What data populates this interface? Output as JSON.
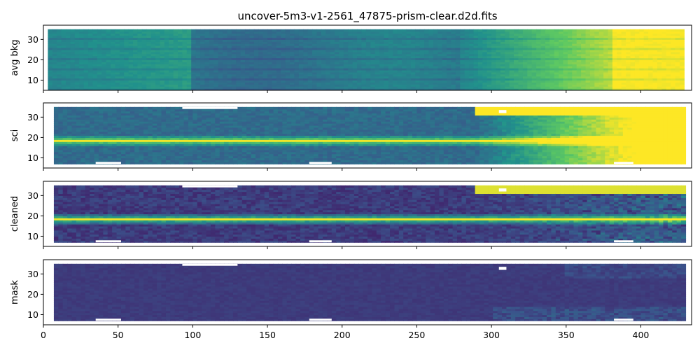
{
  "chart_data": {
    "type": "heatmap",
    "title": "uncover-5m3-v1-2561_47875-prism-clear.d2d.fits",
    "colormap": "viridis",
    "colormap_stops": [
      "#440154",
      "#3b528b",
      "#21918c",
      "#5ec962",
      "#fde725"
    ],
    "masked_color": "#ffffff",
    "xlim": [
      0,
      434
    ],
    "ylim": [
      5,
      37
    ],
    "x_ticks": [
      0,
      50,
      100,
      150,
      200,
      250,
      300,
      350,
      400
    ],
    "y_ticks": [
      10,
      20,
      30
    ],
    "panels": [
      {
        "ylabel": "avg bkg",
        "x_extent": [
          3,
          429
        ],
        "y_extent": [
          5,
          35
        ],
        "description_values": {
          "background_level_at_x": [
            [
              0,
              0.45
            ],
            [
              100,
              0.55
            ],
            [
              110,
              0.42
            ],
            [
              250,
              0.4
            ],
            [
              300,
              0.5
            ],
            [
              350,
              0.75
            ],
            [
              390,
              1.0
            ],
            [
              429,
              1.0
            ]
          ]
        }
      },
      {
        "ylabel": "sci",
        "x_extent": [
          7,
          428
        ],
        "y_extent": [
          7,
          35
        ],
        "trace_y": 18.5,
        "bright_region_x": [
          290,
          428
        ]
      },
      {
        "ylabel": "cleaned",
        "x_extent": [
          7,
          428
        ],
        "y_extent": [
          7,
          35
        ],
        "trace_y": 18.5,
        "bright_region_x": [
          290,
          428
        ]
      },
      {
        "ylabel": "mask",
        "x_extent": [
          7,
          428
        ],
        "y_extent": [
          7,
          35
        ]
      }
    ]
  }
}
